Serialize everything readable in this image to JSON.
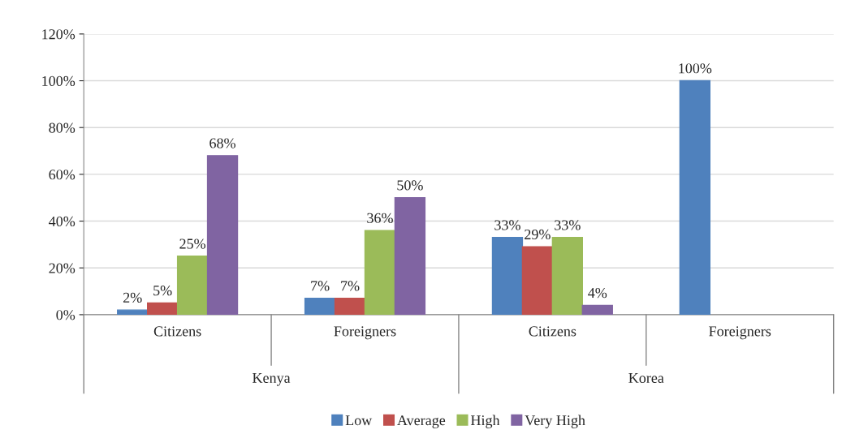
{
  "chart_data": {
    "type": "bar",
    "categories": [
      "Citizens",
      "Foreigners",
      "Citizens",
      "Foreigners"
    ],
    "annotations": [
      "Kenya",
      "Korea"
    ],
    "series": [
      {
        "name": "Low",
        "color": "#4f81bd",
        "values": [
          2,
          7,
          33,
          100
        ],
        "value_labels": [
          "2%",
          "7%",
          "33%",
          "100%"
        ]
      },
      {
        "name": "Average",
        "color": "#c0504d",
        "values": [
          5,
          7,
          29,
          null
        ],
        "value_labels": [
          "5%",
          "7%",
          "29%",
          null
        ]
      },
      {
        "name": "High",
        "color": "#9bbb59",
        "values": [
          25,
          36,
          33,
          null
        ],
        "value_labels": [
          "25%",
          "36%",
          "33%",
          null
        ]
      },
      {
        "name": "Very High",
        "color": "#8064a2",
        "values": [
          68,
          50,
          4,
          null
        ],
        "value_labels": [
          "68%",
          "50%",
          "4%",
          null
        ]
      }
    ],
    "ylim": [
      0,
      120
    ],
    "yticks": [
      {
        "value": 0,
        "label": "0%"
      },
      {
        "value": 20,
        "label": "20%"
      },
      {
        "value": 40,
        "label": "40%"
      },
      {
        "value": 60,
        "label": "60%"
      },
      {
        "value": 80,
        "label": "80%"
      },
      {
        "value": 100,
        "label": "100%"
      },
      {
        "value": 120,
        "label": "120%"
      }
    ],
    "grid": "y",
    "legend": "bottom"
  }
}
